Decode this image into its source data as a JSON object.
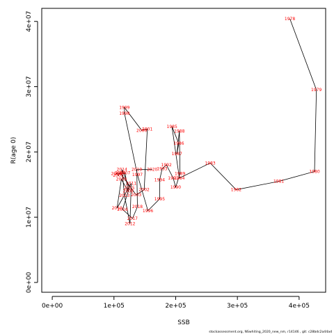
{
  "chart_data": {
    "type": "line",
    "xlabel": "SSB",
    "ylabel": "R(age 0)",
    "xlim": [
      -17000,
      443000
    ],
    "ylim": [
      -1500000,
      42000000
    ],
    "x_ticks": [
      0,
      100000,
      200000,
      300000,
      400000
    ],
    "x_tick_labels": [
      "0e+00",
      "1e+05",
      "2e+05",
      "3e+05",
      "4e+05"
    ],
    "y_ticks": [
      0,
      10000000,
      20000000,
      30000000,
      40000000
    ],
    "y_tick_labels": [
      "0e+00",
      "1e+07",
      "2e+07",
      "3e+07",
      "4e+07"
    ],
    "grid": false,
    "points": [
      {
        "label": "1978",
        "x": 385000,
        "y": 40400000
      },
      {
        "label": "1979",
        "x": 428000,
        "y": 29500000
      },
      {
        "label": "1980",
        "x": 425000,
        "y": 17000000
      },
      {
        "label": "1981",
        "x": 367000,
        "y": 15500000
      },
      {
        "label": "1982",
        "x": 298000,
        "y": 14200000
      },
      {
        "label": "1983",
        "x": 256000,
        "y": 18300000
      },
      {
        "label": "1984",
        "x": 206000,
        "y": 16000000
      },
      {
        "label": "1985",
        "x": 194000,
        "y": 23900000
      },
      {
        "label": "1986",
        "x": 205000,
        "y": 21300000
      },
      {
        "label": "1987",
        "x": 202000,
        "y": 19700000
      },
      {
        "label": "1988",
        "x": 206000,
        "y": 23200000
      },
      {
        "label": "1989",
        "x": 207000,
        "y": 16700000
      },
      {
        "label": "1990",
        "x": 200000,
        "y": 14600000
      },
      {
        "label": "1991",
        "x": 196000,
        "y": 16000000
      },
      {
        "label": "1992",
        "x": 185000,
        "y": 18000000
      },
      {
        "label": "1993",
        "x": 178000,
        "y": 17400000
      },
      {
        "label": "1994",
        "x": 174000,
        "y": 15700000
      },
      {
        "label": "1995",
        "x": 174000,
        "y": 12800000
      },
      {
        "label": "1996",
        "x": 155000,
        "y": 11000000
      },
      {
        "label": "1997",
        "x": 138000,
        "y": 16500000
      },
      {
        "label": "1998",
        "x": 117000,
        "y": 25900000
      },
      {
        "label": "1999",
        "x": 117000,
        "y": 26800000
      },
      {
        "label": "2000",
        "x": 145000,
        "y": 23300000
      },
      {
        "label": "2001",
        "x": 154000,
        "y": 23500000
      },
      {
        "label": "2002",
        "x": 149000,
        "y": 14200000
      },
      {
        "label": "2003",
        "x": 136000,
        "y": 13400000
      },
      {
        "label": "2004",
        "x": 110000,
        "y": 16800000
      },
      {
        "label": "2005",
        "x": 107000,
        "y": 16400000
      },
      {
        "label": "2006",
        "x": 104000,
        "y": 16700000
      },
      {
        "label": "2007",
        "x": 118000,
        "y": 16800000
      },
      {
        "label": "2008",
        "x": 123000,
        "y": 14000000
      },
      {
        "label": "2009",
        "x": 112000,
        "y": 15800000
      },
      {
        "label": "2010",
        "x": 105000,
        "y": 11400000
      },
      {
        "label": "2011",
        "x": 128000,
        "y": 15200000
      },
      {
        "label": "2012",
        "x": 126000,
        "y": 9000000
      },
      {
        "label": "2013",
        "x": 117000,
        "y": 13300000
      },
      {
        "label": "2014",
        "x": 113000,
        "y": 17300000
      },
      {
        "label": "2015",
        "x": 125000,
        "y": 14500000
      },
      {
        "label": "2016",
        "x": 114000,
        "y": 11200000
      },
      {
        "label": "2017",
        "x": 130000,
        "y": 9800000
      },
      {
        "label": "2018",
        "x": 138000,
        "y": 11600000
      },
      {
        "label": "2019",
        "x": 137000,
        "y": 17300000
      },
      {
        "label": "2020",
        "x": 162000,
        "y": 17300000
      }
    ]
  },
  "footer": "stockassessment.org, NSwhiting_2020_new_nm, r14146 , git: c28bdc2a44ad"
}
